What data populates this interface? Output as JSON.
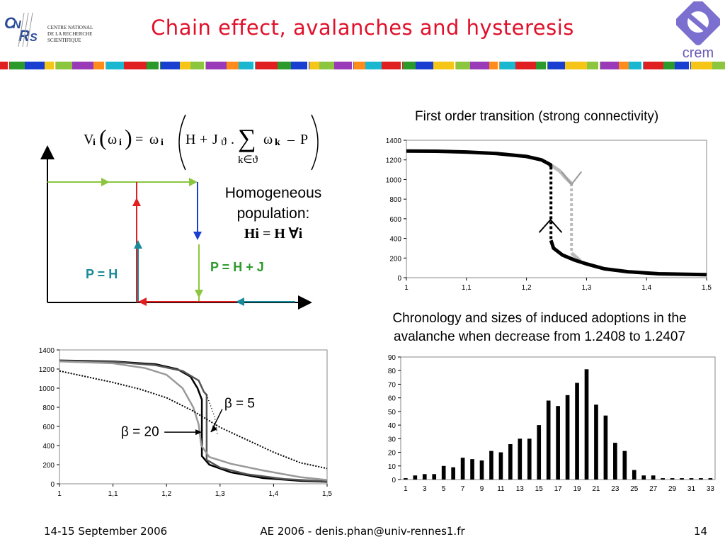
{
  "slide": {
    "title": "Chain effect, avalanches and hysteresis",
    "slide_number": "14"
  },
  "logos": {
    "cnrs_lines": [
      "CENTRE NATIONAL",
      "DE LA RECHERCHE",
      "SCIENTIFIQUE"
    ],
    "crem_label": "crem"
  },
  "footer": {
    "date": "14-15 September 2006",
    "center": "AE 2006 - denis.phan@univ-rennes1.fr"
  },
  "formula": {
    "V": "V",
    "i": "i",
    "omega": "ω",
    "H": "H",
    "J": "J",
    "theta": "ϑ",
    "sum_sub": "k∈ϑ",
    "k": "k",
    "P": "P"
  },
  "homogeneous": {
    "line1": "Homogeneous",
    "line2": "population:",
    "eq": "Hi = H ∀i"
  },
  "diagram": {
    "label_left": "P = H",
    "label_right": "P = H + J"
  },
  "captions": {
    "top_right": "First order transition  (strong connectivity)",
    "bottom_right_1": "Chronology and sizes of induced adoptions in the",
    "bottom_right_2": "avalanche when decrease from 1.2408 to 1.2407"
  },
  "colors": {
    "title": "#e0102a",
    "green": "#8cc63f",
    "red": "#e02020",
    "blue": "#1a3fd0",
    "teal": "#1a8a9a",
    "dark_green": "#2a9a2a",
    "crem_purple": "#6a5ab8"
  },
  "chart_data": [
    {
      "type": "line",
      "id": "transition",
      "x": {
        "ticks": [
          "1",
          "1,1",
          "1,2",
          "1,3",
          "1,4",
          "1,5"
        ],
        "range": [
          1,
          1.5
        ]
      },
      "y": {
        "ticks": [
          "0",
          "200",
          "400",
          "600",
          "800",
          "1000",
          "1200",
          "1400"
        ],
        "range": [
          0,
          1400
        ]
      },
      "series": [
        {
          "points": [
            [
              1.0,
              1290
            ],
            [
              1.05,
              1288
            ],
            [
              1.1,
              1280
            ],
            [
              1.15,
              1265
            ],
            [
              1.2,
              1235
            ],
            [
              1.225,
              1200
            ],
            [
              1.24,
              1150
            ],
            [
              1.2408,
              1130
            ],
            [
              1.2408,
              380
            ],
            [
              1.245,
              300
            ],
            [
              1.26,
              230
            ],
            [
              1.28,
              180
            ],
            [
              1.3,
              140
            ],
            [
              1.33,
              90
            ],
            [
              1.37,
              60
            ],
            [
              1.42,
              40
            ],
            [
              1.5,
              30
            ]
          ]
        },
        {
          "points": [
            [
              1.24,
              1150
            ],
            [
              1.255,
              1090
            ],
            [
              1.265,
              1020
            ],
            [
              1.275,
              960
            ],
            [
              1.275,
              250
            ],
            [
              1.29,
              170
            ]
          ]
        }
      ]
    },
    {
      "type": "line",
      "id": "beta",
      "x": {
        "ticks": [
          "1",
          "1,1",
          "1,2",
          "1,3",
          "1,4",
          "1,5"
        ],
        "range": [
          1,
          1.5
        ]
      },
      "y": {
        "ticks": [
          "0",
          "200",
          "400",
          "600",
          "800",
          "1000",
          "1200",
          "1400"
        ],
        "range": [
          0,
          1400
        ]
      },
      "annotations": [
        "β = 5",
        "β = 20"
      ],
      "series": [
        {
          "points": [
            [
              1,
              1290
            ],
            [
              1.1,
              1280
            ],
            [
              1.18,
              1250
            ],
            [
              1.22,
              1200
            ],
            [
              1.245,
              1120
            ],
            [
              1.258,
              1000
            ],
            [
              1.266,
              880
            ],
            [
              1.266,
              290
            ],
            [
              1.28,
              200
            ],
            [
              1.32,
              120
            ],
            [
              1.38,
              60
            ],
            [
              1.45,
              30
            ],
            [
              1.5,
              20
            ]
          ]
        },
        {
          "points": [
            [
              1,
              1285
            ],
            [
              1.1,
              1275
            ],
            [
              1.18,
              1240
            ],
            [
              1.23,
              1180
            ],
            [
              1.26,
              1080
            ],
            [
              1.27,
              960
            ],
            [
              1.275,
              930
            ],
            [
              1.275,
              250
            ],
            [
              1.3,
              170
            ],
            [
              1.35,
              100
            ],
            [
              1.42,
              50
            ],
            [
              1.5,
              25
            ]
          ]
        },
        {
          "points": [
            [
              1,
              1280
            ],
            [
              1.1,
              1260
            ],
            [
              1.16,
              1210
            ],
            [
              1.2,
              1140
            ],
            [
              1.23,
              1000
            ],
            [
              1.25,
              800
            ],
            [
              1.26,
              620
            ],
            [
              1.265,
              400
            ],
            [
              1.28,
              280
            ],
            [
              1.32,
              210
            ],
            [
              1.38,
              140
            ],
            [
              1.45,
              70
            ],
            [
              1.5,
              40
            ]
          ]
        },
        {
          "points": [
            [
              1,
              1180
            ],
            [
              1.05,
              1120
            ],
            [
              1.1,
              1060
            ],
            [
              1.15,
              990
            ],
            [
              1.2,
              900
            ],
            [
              1.25,
              760
            ],
            [
              1.3,
              590
            ],
            [
              1.35,
              460
            ],
            [
              1.4,
              330
            ],
            [
              1.45,
              220
            ],
            [
              1.5,
              160
            ]
          ]
        },
        {
          "points": [
            [
              1.275,
              930
            ],
            [
              1.29,
              700
            ],
            [
              1.295,
              520
            ]
          ]
        }
      ]
    },
    {
      "type": "bar",
      "id": "chronology",
      "categories": [
        "1",
        "2",
        "3",
        "4",
        "5",
        "6",
        "7",
        "8",
        "9",
        "10",
        "11",
        "12",
        "13",
        "14",
        "15",
        "16",
        "17",
        "18",
        "19",
        "20",
        "21",
        "22",
        "23",
        "24",
        "25",
        "26",
        "27",
        "28",
        "29",
        "30",
        "31",
        "32",
        "33"
      ],
      "x_tick_labels": [
        "1",
        "3",
        "5",
        "7",
        "9",
        "11",
        "13",
        "15",
        "17",
        "19",
        "21",
        "23",
        "25",
        "27",
        "29",
        "31",
        "33"
      ],
      "values": [
        1,
        3,
        4,
        4,
        10,
        9,
        16,
        15,
        14,
        21,
        20,
        26,
        30,
        30,
        40,
        58,
        54,
        62,
        71,
        81,
        55,
        47,
        27,
        21,
        7,
        3,
        3,
        1,
        1,
        1,
        1,
        1,
        1
      ],
      "y": {
        "ticks": [
          "0",
          "10",
          "20",
          "30",
          "40",
          "50",
          "60",
          "70",
          "80",
          "90"
        ],
        "range": [
          0,
          90
        ]
      }
    }
  ]
}
